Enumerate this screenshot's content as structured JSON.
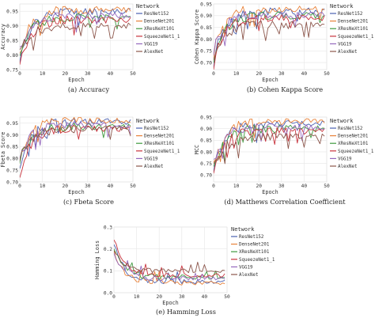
{
  "figure": {
    "panels": [
      {
        "key": "accuracy",
        "caption": "(a) Accuracy",
        "chart_data": {
          "type": "line",
          "xlabel": "Epoch",
          "ylabel": "Accuracy",
          "xlim": [
            0,
            50
          ],
          "ylim": [
            0.75,
            0.975
          ],
          "xticks": [
            "0",
            "10",
            "20",
            "30",
            "40",
            "50"
          ],
          "yticks": [
            0.75,
            0.8,
            0.85,
            0.9,
            0.95
          ],
          "ytick_labels": [
            "0.75",
            "0.80",
            "0.85",
            "0.90",
            "0.95"
          ],
          "grid": true,
          "legend": {
            "title": "Network",
            "placement": "right-outside"
          },
          "series_start": [
            0.77,
            0.8,
            0.79,
            0.76,
            0.82,
            0.81
          ],
          "series_end": [
            0.95,
            0.955,
            0.93,
            0.92,
            0.935,
            0.9
          ],
          "noise": 0.012
        }
      },
      {
        "key": "kappa",
        "caption": "(b) Cohen Kappa Score",
        "chart_data": {
          "type": "line",
          "xlabel": "Epoch",
          "ylabel": "Cohen Kappa Score",
          "xlim": [
            0,
            50
          ],
          "ylim": [
            0.67,
            0.95
          ],
          "xticks": [
            "0",
            "10",
            "20",
            "30",
            "40",
            "50"
          ],
          "yticks": [
            0.7,
            0.75,
            0.8,
            0.85,
            0.9,
            0.95
          ],
          "ytick_labels": [
            "0.70",
            "0.75",
            "0.80",
            "0.85",
            "0.90",
            "0.95"
          ],
          "grid": true,
          "legend": {
            "title": "Network",
            "placement": "right-outside"
          },
          "series_start": [
            0.7,
            0.74,
            0.72,
            0.69,
            0.75,
            0.73
          ],
          "series_end": [
            0.92,
            0.93,
            0.9,
            0.89,
            0.905,
            0.86
          ],
          "noise": 0.015
        }
      },
      {
        "key": "fbeta",
        "caption": "(c) Fbeta Score",
        "chart_data": {
          "type": "line",
          "xlabel": "Epoch",
          "ylabel": "Fbeta Score",
          "xlim": [
            0,
            50
          ],
          "ylim": [
            0.7,
            0.975
          ],
          "xticks": [
            "0",
            "10",
            "20",
            "30",
            "40",
            "50"
          ],
          "yticks": [
            0.7,
            0.75,
            0.8,
            0.85,
            0.9,
            0.95
          ],
          "ytick_labels": [
            "0.70",
            "0.75",
            "0.80",
            "0.85",
            "0.90",
            "0.95"
          ],
          "grid": true,
          "legend": {
            "title": "Network",
            "placement": "right-outside"
          },
          "series_start": [
            0.76,
            0.79,
            0.78,
            0.72,
            0.8,
            0.79
          ],
          "series_end": [
            0.955,
            0.96,
            0.935,
            0.925,
            0.94,
            0.925
          ],
          "noise": 0.014
        }
      },
      {
        "key": "mcc",
        "caption": "(d) Matthews Correlation Coefficient",
        "chart_data": {
          "type": "line",
          "xlabel": "Epoch",
          "ylabel": "MCC",
          "xlim": [
            0,
            50
          ],
          "ylim": [
            0.67,
            0.95
          ],
          "xticks": [
            "0",
            "10",
            "20",
            "30",
            "40",
            "50"
          ],
          "yticks": [
            0.7,
            0.75,
            0.8,
            0.85,
            0.9,
            0.95
          ],
          "ytick_labels": [
            "0.70",
            "0.75",
            "0.80",
            "0.85",
            "0.90",
            "0.95"
          ],
          "grid": true,
          "legend": {
            "title": "Network",
            "placement": "right-outside"
          },
          "series_start": [
            0.7,
            0.74,
            0.72,
            0.69,
            0.75,
            0.73
          ],
          "series_end": [
            0.92,
            0.93,
            0.9,
            0.89,
            0.905,
            0.865
          ],
          "noise": 0.015
        }
      },
      {
        "key": "hamming",
        "caption": "(e) Hamming Loss",
        "chart_data": {
          "type": "line",
          "xlabel": "Epoch",
          "ylabel": "Hamming Loss",
          "xlim": [
            0,
            50
          ],
          "ylim": [
            0.0,
            0.3
          ],
          "xticks": [
            "0",
            "10",
            "20",
            "30",
            "40",
            "50"
          ],
          "yticks": [
            0.0,
            0.1,
            0.2,
            0.3
          ],
          "ytick_labels": [
            "0.0",
            "0.1",
            "0.2",
            "0.3"
          ],
          "grid": true,
          "legend": {
            "title": "Network",
            "placement": "right-outside"
          },
          "series_start": [
            0.23,
            0.2,
            0.21,
            0.25,
            0.19,
            0.2
          ],
          "series_end": [
            0.05,
            0.045,
            0.07,
            0.08,
            0.065,
            0.1
          ],
          "noise": 0.01
        }
      }
    ],
    "series_names": [
      "ResNet152",
      "DenseNet201",
      "XResNeXt101",
      "SqueezeNet1_1",
      "VGG19",
      "AlexNet"
    ],
    "series_colors": [
      "#4a60b0",
      "#e8823a",
      "#3f9a3f",
      "#c8323c",
      "#9467bd",
      "#8c564b"
    ]
  }
}
